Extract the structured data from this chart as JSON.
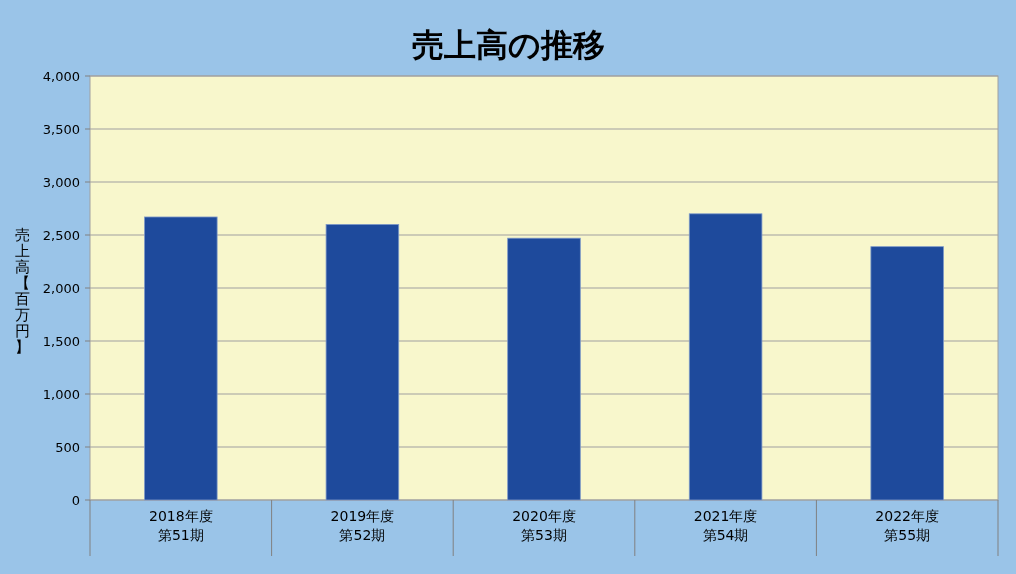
{
  "chart_data": {
    "type": "bar",
    "title": "売上高の推移",
    "ylabel": "売上高【百万円】",
    "categories": [
      "2018年度第51期",
      "2019年度第52期",
      "2020年度第53期",
      "2021年度第54期",
      "2022年度第55期"
    ],
    "series": [
      {
        "color": "#1e4a9c",
        "values": [
          2670,
          2600,
          2470,
          2700,
          2390
        ]
      }
    ],
    "ylim": [
      0,
      4000
    ],
    "yticks": [
      0,
      {
        "value": 500,
        "label": "500"
      },
      {
        "value": 1000,
        "label": "1,000"
      },
      {
        "value": 1500,
        "label": "1,500"
      },
      {
        "value": 2000,
        "label": "2,000"
      },
      {
        "value": 2500,
        "label": "2,500"
      },
      {
        "value": 3000,
        "label": "3,000"
      },
      {
        "value": 3500,
        "label": "3,500"
      },
      {
        "value": 4000,
        "label": "4,000"
      }
    ],
    "grid": "y"
  }
}
